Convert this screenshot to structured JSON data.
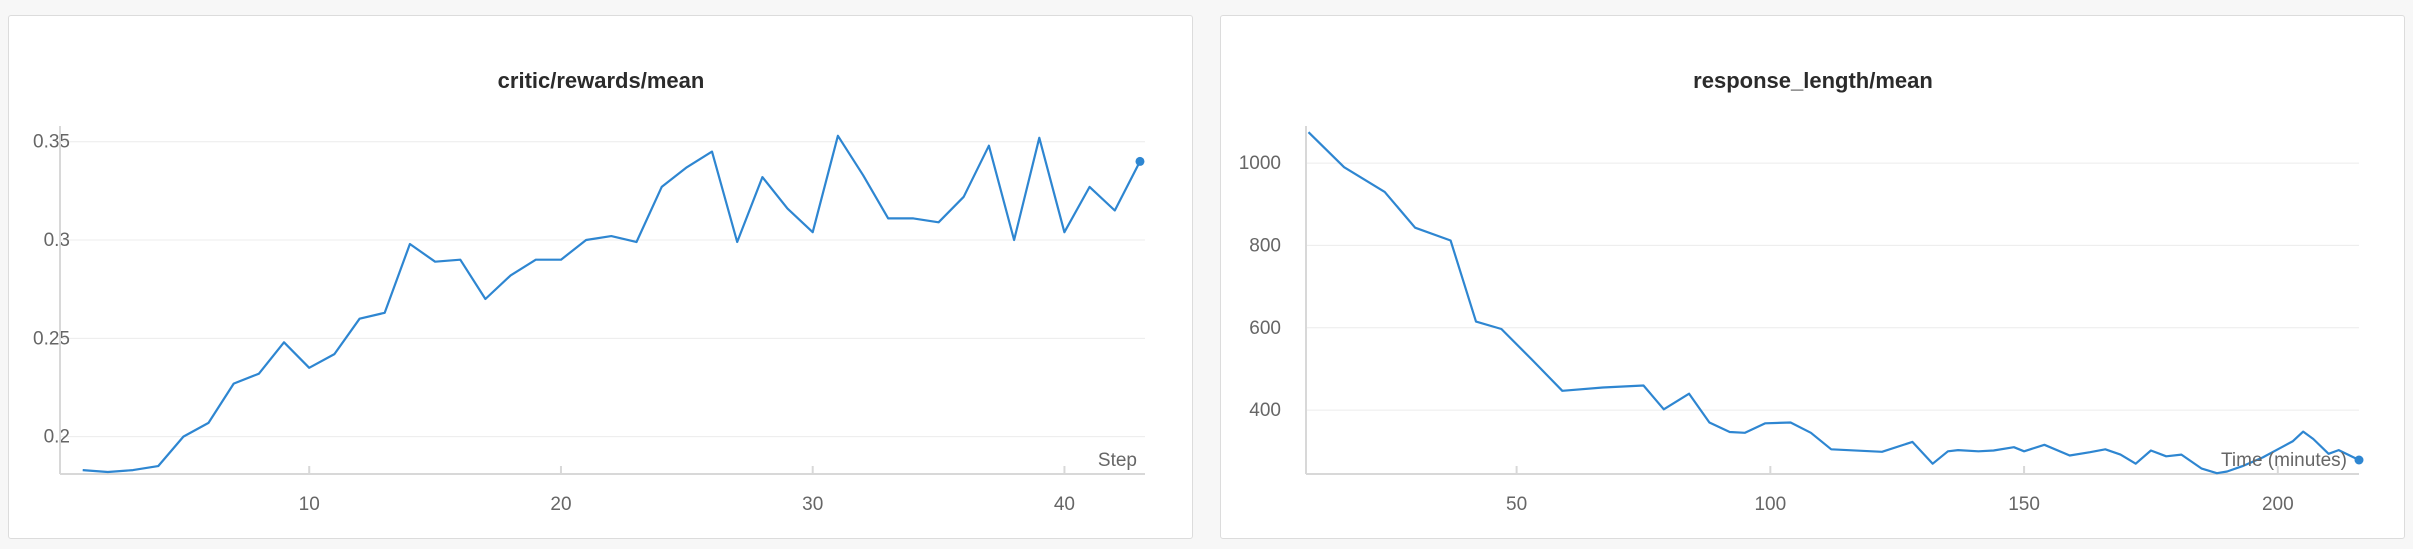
{
  "colors": {
    "line": "#2e86d1",
    "grid": "#ececec",
    "axis": "#d8d8d8",
    "text": "#666666",
    "title": "#2b2b2b"
  },
  "chart_data": [
    {
      "type": "line",
      "title": "critic/rewards/mean",
      "xlabel": "Step",
      "ylabel": "",
      "xlim": [
        0.1,
        43.2
      ],
      "ylim": [
        0.181,
        0.358
      ],
      "xticks": [
        10,
        20,
        30,
        40
      ],
      "xtick_labels": [
        "10",
        "20",
        "30",
        "40"
      ],
      "yticks": [
        0.2,
        0.25,
        0.3,
        0.35
      ],
      "ytick_labels": [
        "0.2",
        "0.25",
        "0.3",
        "0.35"
      ],
      "grid": true,
      "end_marker": true,
      "series": [
        {
          "x": [
            1,
            2,
            3,
            4,
            5,
            6,
            7,
            8,
            9,
            10,
            11,
            12,
            13,
            14,
            15,
            16,
            17,
            18,
            19,
            20,
            21,
            22,
            23,
            24,
            25,
            26,
            27,
            28,
            29,
            30,
            31,
            32,
            33,
            34,
            35,
            36,
            37,
            38,
            39,
            40,
            41,
            42,
            43
          ],
          "y": [
            0.183,
            0.182,
            0.183,
            0.185,
            0.2,
            0.207,
            0.227,
            0.232,
            0.248,
            0.235,
            0.242,
            0.26,
            0.263,
            0.298,
            0.289,
            0.29,
            0.27,
            0.282,
            0.29,
            0.29,
            0.3,
            0.302,
            0.299,
            0.327,
            0.337,
            0.345,
            0.299,
            0.332,
            0.316,
            0.304,
            0.353,
            0.333,
            0.311,
            0.311,
            0.309,
            0.322,
            0.348,
            0.3,
            0.352,
            0.304,
            0.327,
            0.315,
            0.34
          ]
        }
      ]
    },
    {
      "type": "line",
      "title": "response_length/mean",
      "xlabel": "Time (minutes)",
      "ylabel": "",
      "xlim": [
        8.5,
        216
      ],
      "ylim": [
        245,
        1090
      ],
      "xticks": [
        50,
        100,
        150,
        200
      ],
      "xtick_labels": [
        "50",
        "100",
        "150",
        "200"
      ],
      "yticks": [
        400,
        600,
        800,
        1000
      ],
      "ytick_labels": [
        "400",
        "600",
        "800",
        "1000"
      ],
      "grid": true,
      "end_marker": true,
      "series": [
        {
          "x": [
            9,
            16,
            24,
            30,
            37,
            42,
            47,
            53,
            59,
            67,
            75,
            79,
            84,
            88,
            92,
            95,
            99,
            104,
            108,
            112,
            122,
            128,
            132,
            135,
            137,
            141,
            144,
            148,
            150,
            154,
            159,
            163,
            166,
            169,
            172,
            175,
            178,
            181,
            185,
            188,
            190,
            193,
            197,
            200,
            203,
            205,
            207,
            210,
            212,
            216
          ],
          "y": [
            1075,
            990,
            930,
            843,
            812,
            615,
            597,
            523,
            447,
            455,
            460,
            402,
            440,
            370,
            347,
            345,
            368,
            370,
            345,
            305,
            299,
            323,
            270,
            300,
            303,
            300,
            302,
            310,
            300,
            316,
            290,
            298,
            305,
            292,
            270,
            302,
            288,
            292,
            258,
            247,
            251,
            264,
            285,
            305,
            325,
            348,
            330,
            294,
            303,
            279
          ]
        }
      ]
    }
  ]
}
